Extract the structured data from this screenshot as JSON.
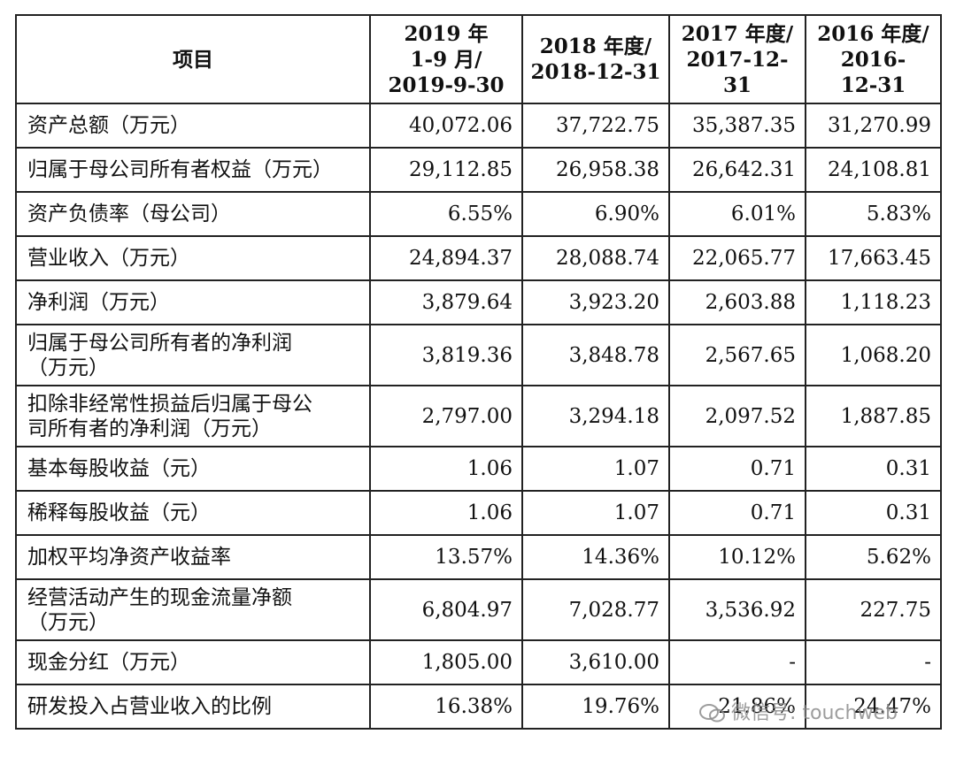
{
  "table": {
    "headers": [
      "项目",
      "2019 年\n1-9 月/\n2019-9-30",
      "2018 年度/\n2018-12-31",
      "2017 年度/\n2017-12-31",
      "2016 年度/\n2016-\n12-31"
    ],
    "rows": [
      {
        "label": "资产总额（万元）",
        "values": [
          "40,072.06",
          "37,722.75",
          "35,387.35",
          "31,270.99"
        ]
      },
      {
        "label": "归属于母公司所有者权益（万元）",
        "values": [
          "29,112.85",
          "26,958.38",
          "26,642.31",
          "24,108.81"
        ]
      },
      {
        "label": "资产负债率（母公司）",
        "values": [
          "6.55%",
          "6.90%",
          "6.01%",
          "5.83%"
        ]
      },
      {
        "label": "营业收入（万元）",
        "values": [
          "24,894.37",
          "28,088.74",
          "22,065.77",
          "17,663.45"
        ]
      },
      {
        "label": "净利润（万元）",
        "values": [
          "3,879.64",
          "3,923.20",
          "2,603.88",
          "1,118.23"
        ]
      },
      {
        "label": "归属于母公司所有者的净利润\n（万元）",
        "values": [
          "3,819.36",
          "3,848.78",
          "2,567.65",
          "1,068.20"
        ]
      },
      {
        "label": "扣除非经常性损益后归属于母公\n司所有者的净利润（万元）",
        "values": [
          "2,797.00",
          "3,294.18",
          "2,097.52",
          "1,887.85"
        ]
      },
      {
        "label": "基本每股收益（元）",
        "values": [
          "1.06",
          "1.07",
          "0.71",
          "0.31"
        ]
      },
      {
        "label": "稀释每股收益（元）",
        "values": [
          "1.06",
          "1.07",
          "0.71",
          "0.31"
        ]
      },
      {
        "label": "加权平均净资产收益率",
        "values": [
          "13.57%",
          "14.36%",
          "10.12%",
          "5.62%"
        ]
      },
      {
        "label": "经营活动产生的现金流量净额\n（万元）",
        "values": [
          "6,804.97",
          "7,028.77",
          "3,536.92",
          "227.75"
        ]
      },
      {
        "label": "现金分红（万元）",
        "values": [
          "1,805.00",
          "3,610.00",
          "-",
          "-"
        ]
      },
      {
        "label": "研发投入占营业收入的比例",
        "values": [
          "16.38%",
          "19.76%",
          "21.86%",
          "24.47%"
        ]
      }
    ]
  },
  "watermark": {
    "text": "微信号: touchweb",
    "icon": "wechat-icon"
  }
}
